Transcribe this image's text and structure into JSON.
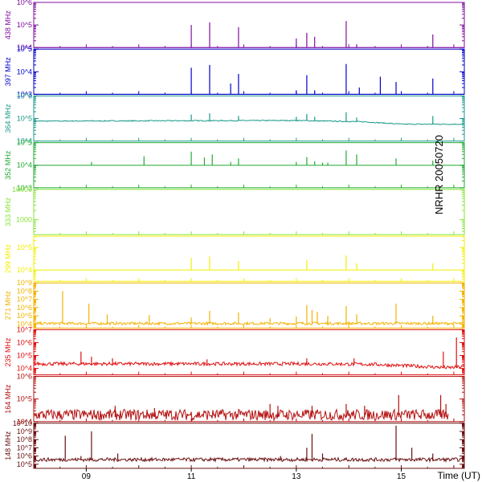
{
  "chart_data": {
    "type": "line",
    "title": "",
    "station_label": "NRHR 20050720",
    "xlabel": "Time (UT)",
    "xlim_hours": [
      8.0,
      16.2
    ],
    "x_ticks": [
      {
        "hour": 9,
        "label": "09"
      },
      {
        "hour": 11,
        "label": "11"
      },
      {
        "hour": 13,
        "label": "13"
      },
      {
        "hour": 15,
        "label": "15"
      }
    ],
    "log_y": true,
    "grid": false,
    "series": [
      {
        "name": "438 MHz",
        "color": "#7f0f9f",
        "ylim_log": [
          4.0,
          6.0
        ],
        "y_ticks": [
          {
            "exp": 4,
            "label": "10^4"
          },
          {
            "exp": 5,
            "label": "10^5"
          },
          {
            "exp": 6,
            "label": "10^6"
          }
        ],
        "baseline": 10000.0,
        "noise": 0.0,
        "start_hour": 8.0,
        "end_hour": 16.2,
        "spikes": [
          [
            11.0,
            100000.0
          ],
          [
            11.35,
            130000.0
          ],
          [
            11.9,
            80000.0
          ],
          [
            13.0,
            25000.0
          ],
          [
            13.2,
            45000.0
          ],
          [
            13.35,
            30000.0
          ],
          [
            13.95,
            150000.0
          ],
          [
            14.15,
            14000.0
          ],
          [
            15.6,
            38000.0
          ]
        ]
      },
      {
        "name": "397 MHz",
        "color": "#0000cc",
        "ylim_log": [
          3.0,
          5.0
        ],
        "y_ticks": [
          {
            "exp": 3,
            "label": "10^3"
          },
          {
            "exp": 4,
            "label": "10^4"
          },
          {
            "exp": 5,
            "label": "10^5"
          }
        ],
        "baseline": 1000.0,
        "noise": 0.0,
        "start_hour": 8.0,
        "end_hour": 16.2,
        "spikes": [
          [
            11.0,
            15000.0
          ],
          [
            11.35,
            20000.0
          ],
          [
            11.75,
            3000.0
          ],
          [
            11.9,
            8000.0
          ],
          [
            13.0,
            1500.0
          ],
          [
            13.2,
            7000.0
          ],
          [
            13.35,
            1500.0
          ],
          [
            13.95,
            22000.0
          ],
          [
            14.2,
            2000.0
          ],
          [
            14.6,
            6000.0
          ],
          [
            14.9,
            3500.0
          ],
          [
            15.6,
            5000.0
          ]
        ]
      },
      {
        "name": "364 MHz",
        "color": "#1a9a8a",
        "ylim_log": [
          4.0,
          6.0
        ],
        "y_ticks": [
          {
            "exp": 4,
            "label": "10^4"
          },
          {
            "exp": 5,
            "label": "10^5"
          },
          {
            "exp": 6,
            "label": "10^6"
          }
        ],
        "baseline": 75000.0,
        "noise": 0.02,
        "trend": [
          [
            8.0,
            75000.0
          ],
          [
            13.0,
            80000.0
          ],
          [
            14.3,
            70000.0
          ],
          [
            15.0,
            55000.0
          ],
          [
            16.0,
            55000.0
          ]
        ],
        "start_hour": 8.0,
        "end_hour": 16.2,
        "spikes": [
          [
            11.0,
            150000.0
          ],
          [
            11.35,
            170000.0
          ],
          [
            11.9,
            130000.0
          ],
          [
            13.0,
            120000.0
          ],
          [
            13.2,
            160000.0
          ],
          [
            13.35,
            120000.0
          ],
          [
            13.95,
            190000.0
          ],
          [
            14.15,
            110000.0
          ],
          [
            15.6,
            130000.0
          ]
        ]
      },
      {
        "name": "352 MHz",
        "color": "#22aa33",
        "ylim_log": [
          3.0,
          5.0
        ],
        "y_ticks": [
          {
            "exp": 3,
            "label": "10^3"
          },
          {
            "exp": 4,
            "label": "10^4"
          },
          {
            "exp": 5,
            "label": "10^5"
          }
        ],
        "baseline": 10000.0,
        "noise": 0.0,
        "start_hour": 8.0,
        "end_hour": 16.2,
        "spikes": [
          [
            9.1,
            14000.0
          ],
          [
            10.1,
            25000.0
          ],
          [
            11.0,
            40000.0
          ],
          [
            11.25,
            22000.0
          ],
          [
            11.4,
            30000.0
          ],
          [
            11.75,
            14000.0
          ],
          [
            11.9,
            20000.0
          ],
          [
            13.0,
            14000.0
          ],
          [
            13.2,
            23000.0
          ],
          [
            13.35,
            15000.0
          ],
          [
            13.5,
            13000.0
          ],
          [
            13.6,
            13000.0
          ],
          [
            13.95,
            45000.0
          ],
          [
            14.15,
            30000.0
          ],
          [
            14.9,
            20000.0
          ],
          [
            15.6,
            16000.0
          ]
        ]
      },
      {
        "name": "333 MHz",
        "color": "#88e33a",
        "ylim_log": [
          2.5,
          4.0
        ],
        "y_ticks": [
          {
            "exp": 3,
            "label": "1000"
          },
          {
            "exp": 4,
            "label": "10000"
          }
        ],
        "baseline": null,
        "noise": 0.0,
        "spikes": []
      },
      {
        "name": "299 MHz",
        "color": "#f2ef00",
        "ylim_log": [
          3.5,
          5.5
        ],
        "y_ticks": [
          {
            "exp": 4,
            "label": "10^4"
          },
          {
            "exp": 5,
            "label": "10^5"
          }
        ],
        "baseline": 10000.0,
        "noise": 0.0,
        "start_hour": 8.0,
        "end_hour": 16.2,
        "spikes": [
          [
            11.0,
            35000.0
          ],
          [
            11.35,
            40000.0
          ],
          [
            11.9,
            25000.0
          ],
          [
            13.2,
            27000.0
          ],
          [
            13.95,
            45000.0
          ],
          [
            14.15,
            20000.0
          ],
          [
            15.6,
            20000.0
          ]
        ]
      },
      {
        "name": "271 MHz",
        "color": "#f2b300",
        "ylim_log": [
          3.5,
          9.0
        ],
        "y_ticks": [
          {
            "exp": 4,
            "label": "10^4"
          },
          {
            "exp": 5,
            "label": "10^5"
          },
          {
            "exp": 6,
            "label": "10^6"
          },
          {
            "exp": 7,
            "label": "10^7"
          },
          {
            "exp": 8,
            "label": "10^8"
          },
          {
            "exp": 9,
            "label": "10^9"
          }
        ],
        "baseline": 10000.0,
        "noise": 0.15,
        "start_hour": 8.0,
        "end_hour": 16.2,
        "spikes": [
          [
            8.55,
            100000000.0
          ],
          [
            9.05,
            3000000.0
          ],
          [
            9.4,
            150000.0
          ],
          [
            10.2,
            120000.0
          ],
          [
            11.0,
            60000.0
          ],
          [
            11.35,
            400000.0
          ],
          [
            11.9,
            250000.0
          ],
          [
            12.5,
            50000.0
          ],
          [
            13.0,
            80000.0
          ],
          [
            13.2,
            2000000.0
          ],
          [
            13.3,
            500000.0
          ],
          [
            13.4,
            300000.0
          ],
          [
            13.6,
            100000.0
          ],
          [
            13.95,
            1500000.0
          ],
          [
            14.15,
            150000.0
          ],
          [
            14.9,
            3000000.0
          ],
          [
            15.6,
            100000.0
          ]
        ]
      },
      {
        "name": "235 MHz",
        "color": "#e01010",
        "ylim_log": [
          3.5,
          7.0
        ],
        "y_ticks": [
          {
            "exp": 4,
            "label": "10^4"
          },
          {
            "exp": 5,
            "label": "10^5"
          },
          {
            "exp": 6,
            "label": "10^6"
          },
          {
            "exp": 7,
            "label": "10^7"
          }
        ],
        "baseline": 20000.0,
        "noise": 0.12,
        "trend": [
          [
            8.0,
            20000.0
          ],
          [
            13.5,
            20000.0
          ],
          [
            14.5,
            18000.0
          ],
          [
            15.3,
            13000.0
          ],
          [
            15.9,
            10000.0
          ],
          [
            16.2,
            12000.0
          ]
        ],
        "start_hour": 8.0,
        "end_hour": 16.2,
        "spikes": [
          [
            8.9,
            200000.0
          ],
          [
            9.1,
            80000.0
          ],
          [
            9.5,
            60000.0
          ],
          [
            11.3,
            50000.0
          ],
          [
            13.2,
            60000.0
          ],
          [
            14.1,
            60000.0
          ],
          [
            15.8,
            200000.0
          ],
          [
            16.05,
            2500000.0
          ]
        ]
      },
      {
        "name": "164 MHz",
        "color": "#b30f0f",
        "ylim_log": [
          4.0,
          6.0
        ],
        "y_ticks": [
          {
            "exp": 4,
            "label": "10^4"
          },
          {
            "exp": 5,
            "label": "10^5"
          },
          {
            "exp": 6,
            "label": "10^6"
          }
        ],
        "baseline": 16000.0,
        "noise": 0.22,
        "start_hour": 8.0,
        "end_hour": 15.9,
        "spikes": [
          [
            9.55,
            50000.0
          ],
          [
            10.3,
            40000.0
          ],
          [
            12.5,
            60000.0
          ],
          [
            12.65,
            50000.0
          ],
          [
            13.3,
            50000.0
          ],
          [
            13.95,
            60000.0
          ],
          [
            14.3,
            50000.0
          ],
          [
            14.95,
            150000.0
          ],
          [
            15.75,
            150000.0
          ],
          [
            15.85,
            60000.0
          ]
        ]
      },
      {
        "name": "148 MHz",
        "color": "#6a0f0f",
        "ylim_log": [
          4.5,
          10.0
        ],
        "y_ticks": [
          {
            "exp": 5,
            "label": "10^5"
          },
          {
            "exp": 6,
            "label": "10^6"
          },
          {
            "exp": 7,
            "label": "10^7"
          },
          {
            "exp": 8,
            "label": "10^8"
          },
          {
            "exp": 9,
            "label": "10^9"
          },
          {
            "exp": 10,
            "label": "10^10"
          }
        ],
        "baseline": 300000.0,
        "noise": 0.2,
        "start_hour": 8.0,
        "end_hour": 16.2,
        "spikes": [
          [
            8.6,
            300000000.0
          ],
          [
            8.9,
            1000000.0
          ],
          [
            9.1,
            1000000000.0
          ],
          [
            9.6,
            2000000.0
          ],
          [
            12.7,
            1000000.0
          ],
          [
            13.2,
            10000000.0
          ],
          [
            13.3,
            500000000.0
          ],
          [
            13.5,
            2000000.0
          ],
          [
            14.9,
            5000000000.0
          ],
          [
            15.2,
            10000000.0
          ],
          [
            15.6,
            2000000.0
          ]
        ]
      }
    ]
  }
}
